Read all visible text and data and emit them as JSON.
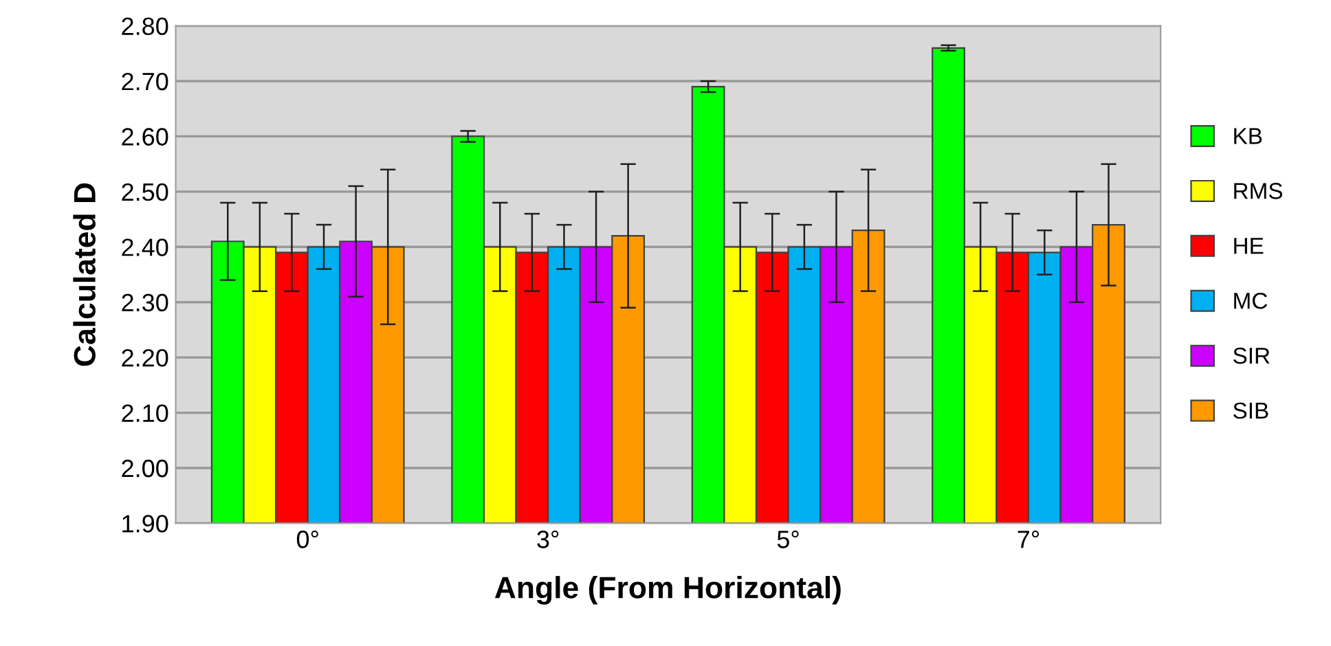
{
  "chart_data": {
    "type": "bar",
    "xlabel": "Angle (From Horizontal)",
    "ylabel": "Calculated D",
    "categories": [
      "0°",
      "3°",
      "5°",
      "7°"
    ],
    "series": [
      {
        "name": "KB",
        "color": "#00ff00",
        "values": [
          2.41,
          2.6,
          2.69,
          2.76
        ],
        "errors": [
          0.07,
          0.01,
          0.01,
          0.005
        ]
      },
      {
        "name": "RMS",
        "color": "#ffff00",
        "values": [
          2.4,
          2.4,
          2.4,
          2.4
        ],
        "errors": [
          0.08,
          0.08,
          0.08,
          0.08
        ]
      },
      {
        "name": "HE",
        "color": "#ff0000",
        "values": [
          2.39,
          2.39,
          2.39,
          2.39
        ],
        "errors": [
          0.07,
          0.07,
          0.07,
          0.07
        ]
      },
      {
        "name": "MC",
        "color": "#00b0f0",
        "values": [
          2.4,
          2.4,
          2.4,
          2.39
        ],
        "errors": [
          0.04,
          0.04,
          0.04,
          0.04
        ]
      },
      {
        "name": "SIR",
        "color": "#cc00ff",
        "values": [
          2.41,
          2.4,
          2.4,
          2.4
        ],
        "errors": [
          0.1,
          0.1,
          0.1,
          0.1
        ]
      },
      {
        "name": "SIB",
        "color": "#ff9900",
        "values": [
          2.4,
          2.42,
          2.43,
          2.44
        ],
        "errors": [
          0.14,
          0.13,
          0.11,
          0.11
        ]
      }
    ],
    "ylim": [
      1.9,
      2.8
    ],
    "yticks": [
      {
        "value": 1.9,
        "label": "1.90"
      },
      {
        "value": 2.0,
        "label": "2.00"
      },
      {
        "value": 2.1,
        "label": "2.10"
      },
      {
        "value": 2.2,
        "label": "2.20"
      },
      {
        "value": 2.3,
        "label": "2.30"
      },
      {
        "value": 2.4,
        "label": "2.40"
      },
      {
        "value": 2.5,
        "label": "2.50"
      },
      {
        "value": 2.6,
        "label": "2.60"
      },
      {
        "value": 2.7,
        "label": "2.70"
      },
      {
        "value": 2.8,
        "label": "2.80"
      }
    ],
    "grid": "y",
    "legend": "right"
  }
}
